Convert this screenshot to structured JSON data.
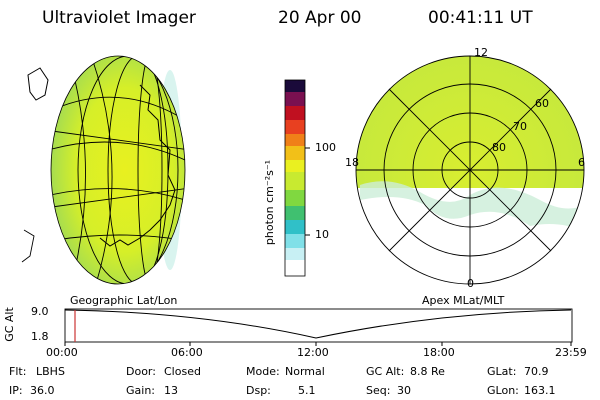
{
  "header": {
    "title": "Ultraviolet Imager",
    "date": "20 Apr 00",
    "time": "00:41:11 UT"
  },
  "colorbar": {
    "label": "photon cm⁻²s⁻¹",
    "ticks": [
      "100",
      "10"
    ]
  },
  "polar_plot": {
    "mlt_labels": [
      "12",
      "18",
      "6",
      "0"
    ],
    "lat_labels": [
      "60",
      "70",
      "80"
    ]
  },
  "timeline": {
    "left_label": "Geographic Lat/Lon",
    "right_label": "Apex MLat/MLT",
    "axis_title": "GC Alt",
    "y_ticks": [
      "9.0",
      "1.8"
    ],
    "x_ticks": [
      "00:00",
      "06:00",
      "12:00",
      "18:00",
      "23:59"
    ]
  },
  "footer": {
    "row1": [
      {
        "label": "Flt:",
        "value": "LBHS"
      },
      {
        "label": "Door:",
        "value": "Closed"
      },
      {
        "label": "Mode:",
        "value": "Normal"
      },
      {
        "label": "GC Alt:",
        "value": "8.8 Re"
      },
      {
        "label": "GLat:",
        "value": "70.9"
      }
    ],
    "row2": [
      {
        "label": "IP:",
        "value": "36.0"
      },
      {
        "label": "Gain:",
        "value": "13"
      },
      {
        "label": "Dsp:",
        "value": "5.1"
      },
      {
        "label": "Seq:",
        "value": "30"
      },
      {
        "label": "GLon:",
        "value": "163.1"
      }
    ]
  },
  "colors": {
    "marker": "#cc3333"
  }
}
